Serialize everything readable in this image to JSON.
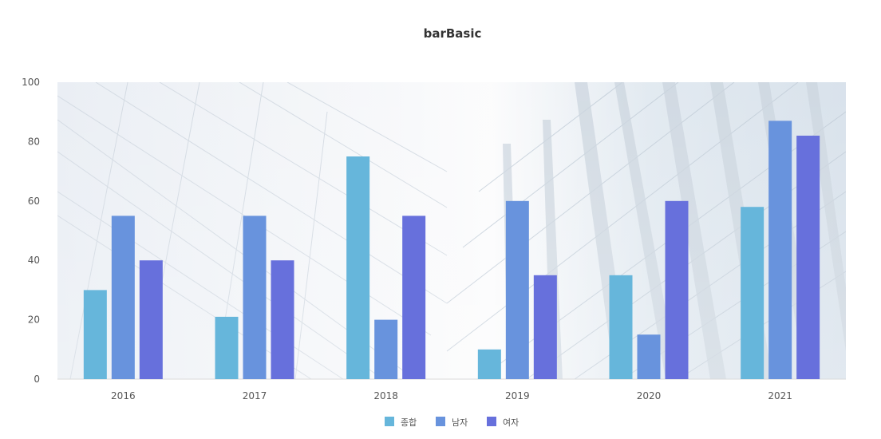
{
  "chart_data": {
    "type": "bar",
    "title": "barBasic",
    "categories": [
      "2016",
      "2017",
      "2018",
      "2019",
      "2020",
      "2021"
    ],
    "ylim": [
      0,
      100
    ],
    "yticks": [
      "0",
      "20",
      "40",
      "60",
      "80",
      "100"
    ],
    "series": [
      {
        "name": "종합",
        "color": "#66b6db",
        "values": [
          30,
          21,
          75,
          10,
          35,
          58
        ]
      },
      {
        "name": "남자",
        "color": "#6893dd",
        "values": [
          55,
          55,
          20,
          60,
          15,
          87
        ]
      },
      {
        "name": "여자",
        "color": "#6770dc",
        "values": [
          40,
          40,
          55,
          35,
          60,
          82
        ]
      }
    ],
    "legend_position": "bottom-center",
    "plot_background": "photo of glass skyscrapers (light blue/grey)",
    "grid": false
  }
}
